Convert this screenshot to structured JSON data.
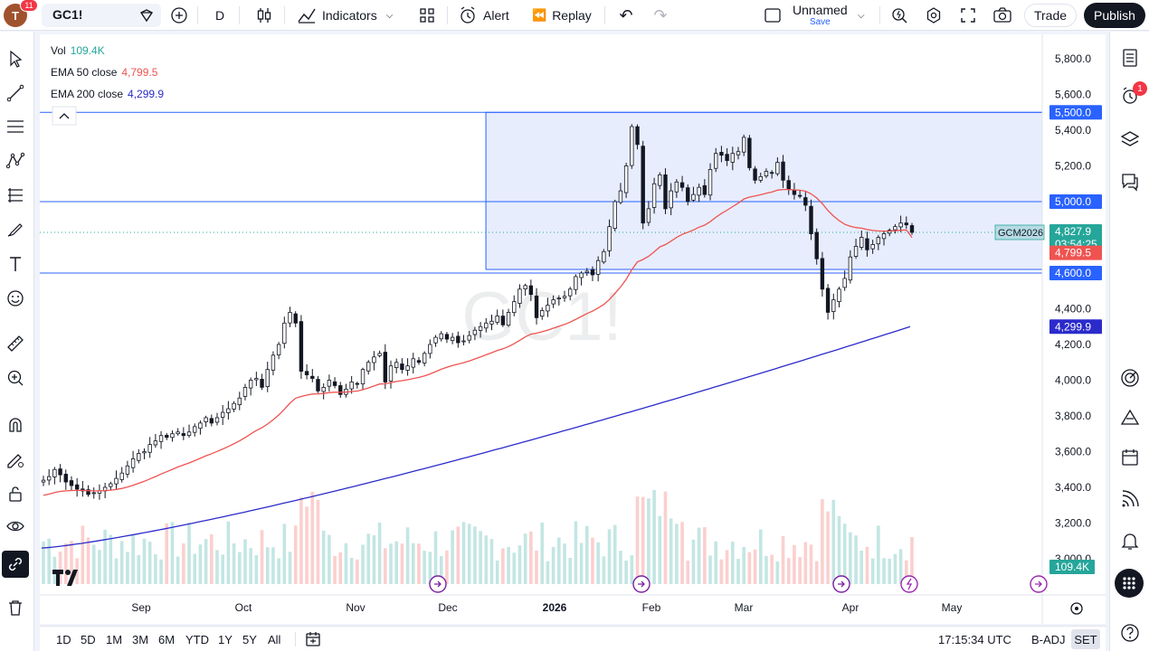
{
  "topbar": {
    "avatar_letter": "T",
    "notifications": "11",
    "symbol": "GC1!",
    "interval": "D",
    "indicators_label": "Indicators",
    "alert_label": "Alert",
    "replay_label": "Replay",
    "layout_name": "Unnamed",
    "layout_save": "Save",
    "trade_label": "Trade",
    "publish_label": "Publish"
  },
  "legend": {
    "vol_label": "Vol",
    "vol_value": "109.4K",
    "ema50_label": "EMA 50 close",
    "ema50_value": "4,799.5",
    "ema200_label": "EMA 200 close",
    "ema200_value": "4,299.9"
  },
  "watermark": "GC1!",
  "right_sidebar": {
    "alerts_badge": "1"
  },
  "colors": {
    "up": "#26a69a",
    "down": "#ef5350",
    "ema50": "#ef5350",
    "ema200": "#2b2bcc",
    "range_fill": "#e7edfd",
    "range_line": "#2962ff",
    "accent": "#2962ff"
  },
  "chart_data": {
    "type": "candlestick",
    "title": "GC1! · D",
    "ylim": [
      2900,
      5900
    ],
    "y_ticks": [
      "3,000.0",
      "3,200.0",
      "3,400.0",
      "3,600.0",
      "3,800.0",
      "4,000.0",
      "4,200.0",
      "4,400.0",
      "5,200.0",
      "5,400.0",
      "5,600.0",
      "5,800.0"
    ],
    "x_ticks": [
      "Sep",
      "Oct",
      "Nov",
      "Dec",
      "2026",
      "Feb",
      "Mar",
      "Apr",
      "May"
    ],
    "price_labels": {
      "range_top": "5,500.0",
      "range_mid": "5,000.0",
      "range_bottom": "4,600.0",
      "last_price": "4,827.9",
      "countdown": "03:54:25",
      "ema50": "4,799.5",
      "ema200": "4,299.9",
      "volume": "109.4K",
      "contract": "GCM2026"
    },
    "levels": {
      "range_top": 5500,
      "range_mid": 5000,
      "range_bottom": 4600,
      "last": 4827.9
    },
    "range_box_x_frac": [
      0.445,
      1.0
    ],
    "closes": [
      3440,
      3460,
      3500,
      3470,
      3430,
      3410,
      3390,
      3380,
      3360,
      3370,
      3380,
      3400,
      3420,
      3450,
      3480,
      3520,
      3560,
      3590,
      3600,
      3640,
      3660,
      3690,
      3680,
      3700,
      3710,
      3690,
      3710,
      3740,
      3760,
      3790,
      3760,
      3790,
      3820,
      3840,
      3870,
      3900,
      3960,
      4000,
      4010,
      3960,
      4060,
      4140,
      4200,
      4320,
      4380,
      4320,
      4050,
      4030,
      4010,
      3940,
      3960,
      4000,
      3970,
      3920,
      3950,
      3990,
      3980,
      4060,
      4100,
      4130,
      4150,
      3990,
      4080,
      4100,
      4060,
      4080,
      4120,
      4100,
      4150,
      4200,
      4240,
      4260,
      4230,
      4240,
      4210,
      4220,
      4250,
      4280,
      4300,
      4320,
      4330,
      4360,
      4310,
      4380,
      4440,
      4510,
      4530,
      4480,
      4350,
      4390,
      4420,
      4450,
      4460,
      4470,
      4510,
      4580,
      4600,
      4610,
      4590,
      4670,
      4720,
      4860,
      5000,
      5060,
      5200,
      5420,
      5320,
      4880,
      4960,
      5100,
      5150,
      4960,
      5060,
      5110,
      5080,
      5000,
      5040,
      5080,
      5040,
      5180,
      5270,
      5260,
      5230,
      5270,
      5280,
      5360,
      5190,
      5120,
      5140,
      5170,
      5160,
      5220,
      5120,
      5070,
      5040,
      5030,
      4980,
      4820,
      4680,
      4510,
      4380,
      4450,
      4510,
      4570,
      4690,
      4750,
      4800,
      4730,
      4760,
      4800,
      4820,
      4840,
      4860,
      4880,
      4870,
      4827.9
    ],
    "ema50": {
      "start": 3350,
      "end": 4799.5,
      "peak": 4940
    },
    "ema200": {
      "start": 3060,
      "end": 4299.9
    },
    "volume_note": "daily volume bars, last value 109.4K"
  },
  "bottombar": {
    "ranges": [
      "1D",
      "5D",
      "1M",
      "3M",
      "6M",
      "YTD",
      "1Y",
      "5Y",
      "All"
    ],
    "clock": "17:15:34 UTC",
    "adj": "B-ADJ",
    "session": "SET"
  }
}
